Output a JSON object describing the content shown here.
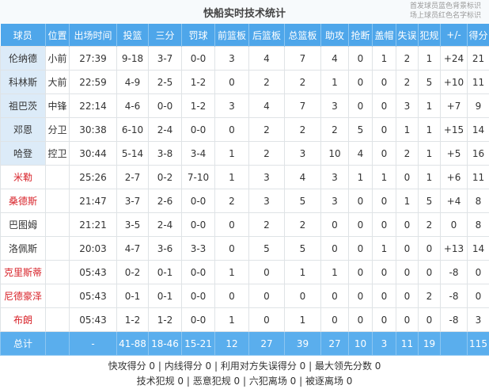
{
  "title": "快船实时技术统计",
  "legend": [
    "首发球员蓝色背景标识",
    "场上球员红色名字标识"
  ],
  "colors": {
    "header": "#4ea6ea",
    "starter_bg": "#dcebf8",
    "on_court_name": "#d8232a"
  },
  "columns": [
    "球员",
    "位置",
    "出场时间",
    "投篮",
    "三分",
    "罚球",
    "前篮板",
    "后篮板",
    "总篮板",
    "助攻",
    "抢断",
    "盖帽",
    "失误",
    "犯规",
    "+/-",
    "得分"
  ],
  "players": [
    {
      "starter": true,
      "on_court": false,
      "cells": [
        "伦纳德",
        "小前",
        "27:39",
        "9-18",
        "3-7",
        "0-0",
        "3",
        "4",
        "7",
        "4",
        "0",
        "1",
        "2",
        "1",
        "+24",
        "21"
      ]
    },
    {
      "starter": true,
      "on_court": false,
      "cells": [
        "科林斯",
        "大前",
        "22:59",
        "4-9",
        "2-5",
        "1-2",
        "0",
        "2",
        "2",
        "1",
        "0",
        "0",
        "2",
        "5",
        "+10",
        "11"
      ]
    },
    {
      "starter": true,
      "on_court": false,
      "cells": [
        "祖巴茨",
        "中锋",
        "22:14",
        "4-6",
        "0-0",
        "1-2",
        "3",
        "4",
        "7",
        "3",
        "0",
        "0",
        "3",
        "1",
        "+7",
        "9"
      ]
    },
    {
      "starter": true,
      "on_court": false,
      "cells": [
        "邓恩",
        "分卫",
        "30:38",
        "6-10",
        "2-4",
        "0-0",
        "0",
        "2",
        "2",
        "2",
        "5",
        "0",
        "1",
        "1",
        "+15",
        "14"
      ]
    },
    {
      "starter": true,
      "on_court": false,
      "cells": [
        "哈登",
        "控卫",
        "30:44",
        "5-14",
        "3-8",
        "3-4",
        "1",
        "2",
        "3",
        "10",
        "4",
        "0",
        "2",
        "1",
        "+5",
        "16"
      ]
    },
    {
      "starter": false,
      "on_court": true,
      "cells": [
        "米勒",
        "",
        "25:26",
        "2-7",
        "0-2",
        "7-10",
        "1",
        "3",
        "4",
        "3",
        "1",
        "1",
        "0",
        "1",
        "+6",
        "11"
      ]
    },
    {
      "starter": false,
      "on_court": true,
      "cells": [
        "桑德斯",
        "",
        "21:47",
        "3-7",
        "2-6",
        "0-0",
        "2",
        "3",
        "5",
        "3",
        "0",
        "0",
        "1",
        "5",
        "+4",
        "8"
      ]
    },
    {
      "starter": false,
      "on_court": false,
      "cells": [
        "巴图姆",
        "",
        "21:21",
        "3-5",
        "2-4",
        "0-0",
        "0",
        "2",
        "2",
        "0",
        "0",
        "0",
        "0",
        "2",
        "0",
        "8"
      ]
    },
    {
      "starter": false,
      "on_court": false,
      "cells": [
        "洛佩斯",
        "",
        "20:03",
        "4-7",
        "3-6",
        "3-3",
        "0",
        "5",
        "5",
        "0",
        "0",
        "1",
        "0",
        "0",
        "+13",
        "14"
      ]
    },
    {
      "starter": false,
      "on_court": true,
      "cells": [
        "克里斯蒂",
        "",
        "05:43",
        "0-2",
        "0-1",
        "0-0",
        "1",
        "0",
        "1",
        "1",
        "0",
        "0",
        "0",
        "0",
        "-8",
        "0"
      ]
    },
    {
      "starter": false,
      "on_court": true,
      "cells": [
        "尼德豪泽",
        "",
        "05:43",
        "0-1",
        "0-1",
        "0-0",
        "0",
        "0",
        "0",
        "0",
        "0",
        "0",
        "0",
        "2",
        "-8",
        "0"
      ]
    },
    {
      "starter": false,
      "on_court": true,
      "cells": [
        "布朗",
        "",
        "05:43",
        "1-2",
        "1-2",
        "0-0",
        "1",
        "0",
        "1",
        "0",
        "0",
        "0",
        "0",
        "0",
        "-8",
        "3"
      ]
    }
  ],
  "total": [
    "总计",
    "",
    "-",
    "41-88",
    "18-46",
    "15-21",
    "12",
    "27",
    "39",
    "27",
    "10",
    "3",
    "11",
    "19",
    "",
    "115"
  ],
  "footer": [
    "快攻得分 0 | 内线得分 0 | 利用对方失误得分 0 | 最大领先分数 0",
    "技术犯规 0 | 恶意犯规 0 | 六犯离场 0 | 被逐离场 0"
  ]
}
